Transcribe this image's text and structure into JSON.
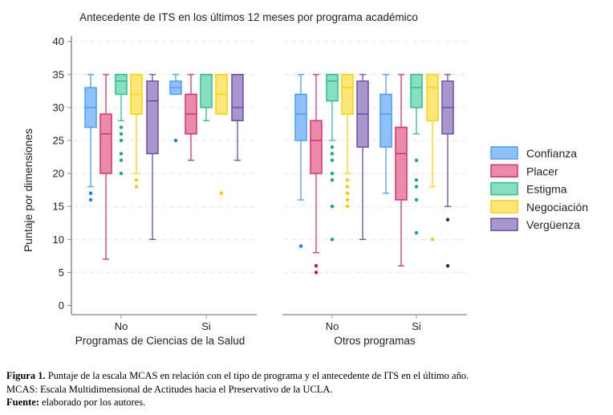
{
  "chart_data": {
    "type": "box",
    "title": "Antecedente de ITS en los últimos 12 meses por programa académico",
    "ylabel": "Puntaje por dimensiones",
    "ylim": [
      0,
      40
    ],
    "yticks": [
      0,
      5,
      10,
      15,
      20,
      25,
      30,
      35,
      40
    ],
    "grid": true,
    "legend_position": "right",
    "series": [
      {
        "name": "Confianza",
        "fill": "#8fc0fb",
        "stroke": "#4a9ff5",
        "dot": "#1a7cf0"
      },
      {
        "name": "Placer",
        "fill": "#e98aa8",
        "stroke": "#d6336c",
        "dot": "#d0104f"
      },
      {
        "name": "Estigma",
        "fill": "#86dfbf",
        "stroke": "#2fbf88",
        "dot": "#10b070"
      },
      {
        "name": "Negociación",
        "fill": "#ffe67a",
        "stroke": "#ffd400",
        "dot": "#ffc800"
      },
      {
        "name": "Vergüenza",
        "fill": "#a797cc",
        "stroke": "#6a4fa8",
        "dot": "#3a1a8a"
      }
    ],
    "panels": [
      {
        "label": "Programas de Ciencias de la Salud",
        "groups": [
          {
            "label": "No",
            "boxes": [
              {
                "min": 18,
                "q1": 27,
                "median": 30,
                "q3": 33,
                "max": 35,
                "outliers": [
                  17,
                  16
                ]
              },
              {
                "min": 7,
                "q1": 20,
                "median": 26,
                "q3": 29,
                "max": 35,
                "outliers": []
              },
              {
                "min": 28,
                "q1": 32,
                "median": 34,
                "q3": 35,
                "max": 35,
                "outliers": [
                  27,
                  26,
                  25,
                  23,
                  22,
                  20
                ]
              },
              {
                "min": 20,
                "q1": 29,
                "median": 32,
                "q3": 35,
                "max": 35,
                "outliers": [
                  19,
                  18
                ]
              },
              {
                "min": 10,
                "q1": 23,
                "median": 31,
                "q3": 34,
                "max": 35,
                "outliers": []
              }
            ]
          },
          {
            "label": "Si",
            "boxes": [
              {
                "min": 32,
                "q1": 32,
                "median": 33,
                "q3": 34,
                "max": 35,
                "outliers": [
                  25
                ]
              },
              {
                "min": 22,
                "q1": 26,
                "median": 29,
                "q3": 32,
                "max": 35,
                "outliers": []
              },
              {
                "min": 28,
                "q1": 30,
                "median": 35,
                "q3": 35,
                "max": 35,
                "outliers": []
              },
              {
                "min": 29,
                "q1": 29,
                "median": 32,
                "q3": 35,
                "max": 35,
                "outliers": [
                  17
                ]
              },
              {
                "min": 22,
                "q1": 28,
                "median": 30,
                "q3": 35,
                "max": 35,
                "outliers": []
              }
            ]
          }
        ]
      },
      {
        "label": "Otros programas",
        "groups": [
          {
            "label": "No",
            "boxes": [
              {
                "min": 16,
                "q1": 25,
                "median": 29,
                "q3": 32,
                "max": 35,
                "outliers": [
                  9
                ]
              },
              {
                "min": 8,
                "q1": 20,
                "median": 25,
                "q3": 28,
                "max": 35,
                "outliers": [
                  6,
                  5
                ]
              },
              {
                "min": 25,
                "q1": 31,
                "median": 34,
                "q3": 35,
                "max": 35,
                "outliers": [
                  24,
                  23,
                  22,
                  20,
                  19,
                  15,
                  10
                ]
              },
              {
                "min": 20,
                "q1": 29,
                "median": 33,
                "q3": 35,
                "max": 35,
                "outliers": [
                  19,
                  18,
                  17,
                  16,
                  15
                ]
              },
              {
                "min": 10,
                "q1": 24,
                "median": 29,
                "q3": 34,
                "max": 35,
                "outliers": []
              }
            ]
          },
          {
            "label": "Si",
            "boxes": [
              {
                "min": 17,
                "q1": 24,
                "median": 29,
                "q3": 32,
                "max": 35,
                "outliers": []
              },
              {
                "min": 6,
                "q1": 16,
                "median": 23,
                "q3": 27,
                "max": 35,
                "outliers": []
              },
              {
                "min": 26,
                "q1": 30,
                "median": 33,
                "q3": 35,
                "max": 35,
                "outliers": [
                  22,
                  19,
                  18,
                  16,
                  11
                ]
              },
              {
                "min": 18,
                "q1": 28,
                "median": 33,
                "q3": 35,
                "max": 35,
                "outliers": [
                  10
                ]
              },
              {
                "min": 15,
                "q1": 26,
                "median": 30,
                "q3": 34,
                "max": 35,
                "outliers": [
                  13,
                  6
                ]
              }
            ]
          }
        ]
      }
    ]
  },
  "caption": {
    "fig_label": "Figura 1.",
    "fig_text": "Puntaje de la escala MCAS en relación con el tipo de programa y el antecedente de ITS en el último año.",
    "line2": "MCAS: Escala Multidimensional de Actitudes hacia el Preservativo de la UCLA.",
    "source_label": "Fuente:",
    "source_text": "elaborado por los autores."
  }
}
